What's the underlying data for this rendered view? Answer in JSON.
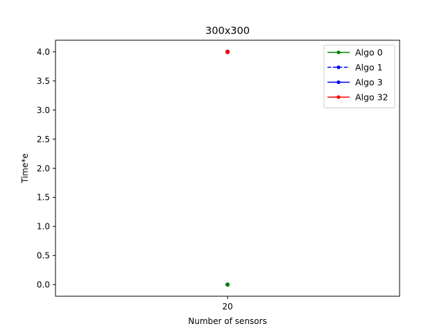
{
  "chart_data": {
    "type": "line",
    "title": "300x300",
    "xlabel": "Number of sensors",
    "ylabel": "Time*e",
    "x": [
      20
    ],
    "x_tick_labels": [
      "20"
    ],
    "xlim": [
      19.8,
      20.2
    ],
    "ylim": [
      -0.2,
      4.2
    ],
    "y_ticks": [
      0.0,
      0.5,
      1.0,
      1.5,
      2.0,
      2.5,
      3.0,
      3.5,
      4.0
    ],
    "y_tick_labels": [
      "0.0",
      "0.5",
      "1.0",
      "1.5",
      "2.0",
      "2.5",
      "3.0",
      "3.5",
      "4.0"
    ],
    "grid": false,
    "legend_position": "top-right",
    "series": [
      {
        "name": "Algo 0",
        "color": "#008000",
        "linestyle": "solid",
        "marker": "circle",
        "values": [
          0
        ]
      },
      {
        "name": "Algo 1",
        "color": "#0000ff",
        "linestyle": "dashed",
        "marker": "circle",
        "values": [
          4
        ]
      },
      {
        "name": "Algo 3",
        "color": "#0000ff",
        "linestyle": "solid",
        "marker": "circle",
        "values": [
          4
        ]
      },
      {
        "name": "Algo 32",
        "color": "#ff0000",
        "linestyle": "solid",
        "marker": "circle",
        "values": [
          4
        ]
      }
    ]
  }
}
